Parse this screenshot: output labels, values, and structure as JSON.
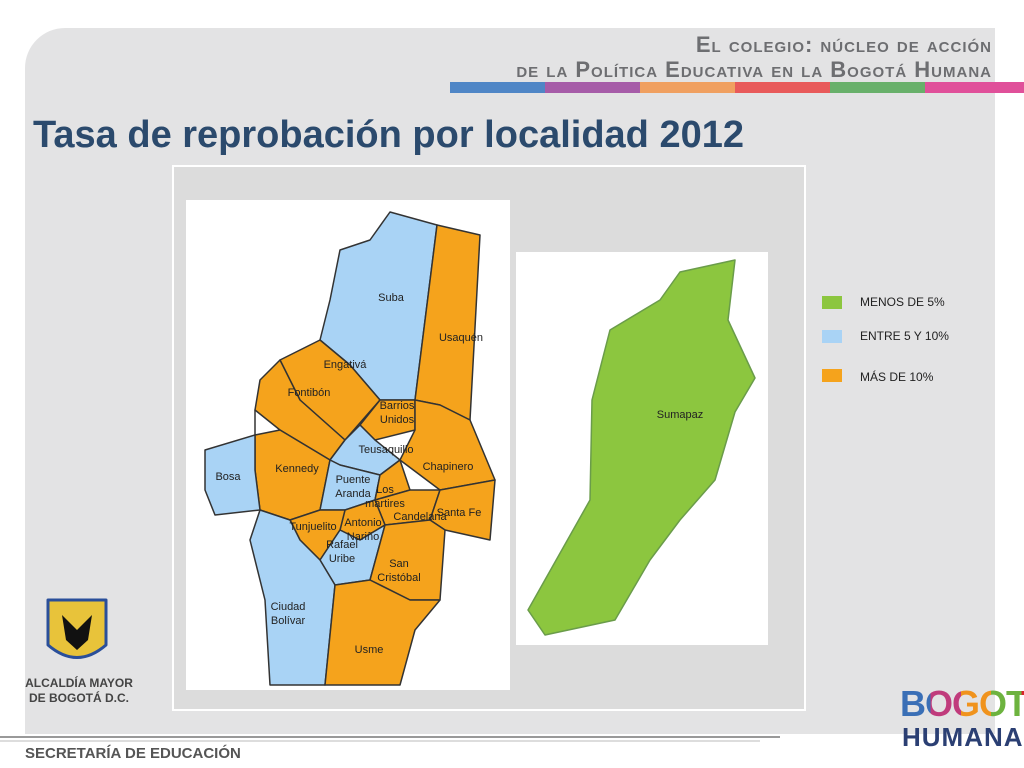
{
  "header": {
    "line1": "El colegio: núcleo de acción",
    "line2": "de la Política Educativa en la Bogotá Humana"
  },
  "title": "Tasa de reprobación por localidad 2012",
  "legend": {
    "items": [
      {
        "label": "MENOS DE 5%",
        "color": "#8cc63f",
        "localities": [
          "Sumapaz"
        ]
      },
      {
        "label": "ENTRE 5 Y 10%",
        "color": "#a9d3f5",
        "localities": [
          "Suba",
          "Teusaquillo",
          "Bosa",
          "Puente Aranda",
          "Rafael Uribe",
          "Ciudad Bolívar"
        ]
      },
      {
        "label": "MÁS DE 10%",
        "color": "#f5a31c",
        "localities": [
          "Usaquén",
          "Engativá",
          "Fontibón",
          "Barrios Unidos",
          "Chapinero",
          "Kennedy",
          "Los mártires",
          "Candelaria",
          "Santa Fe",
          "Antonio Nariño",
          "Tunjuelito",
          "San Cristóbal",
          "Usme"
        ]
      }
    ]
  },
  "footer": {
    "city": "ALCALDÍA MAYOR DE BOGOTÁ D.C.",
    "office": "SECRETARÍA DE EDUCACIÓN",
    "logo_top": "BOGOTÁ",
    "logo_bottom": "HUMANA"
  }
}
